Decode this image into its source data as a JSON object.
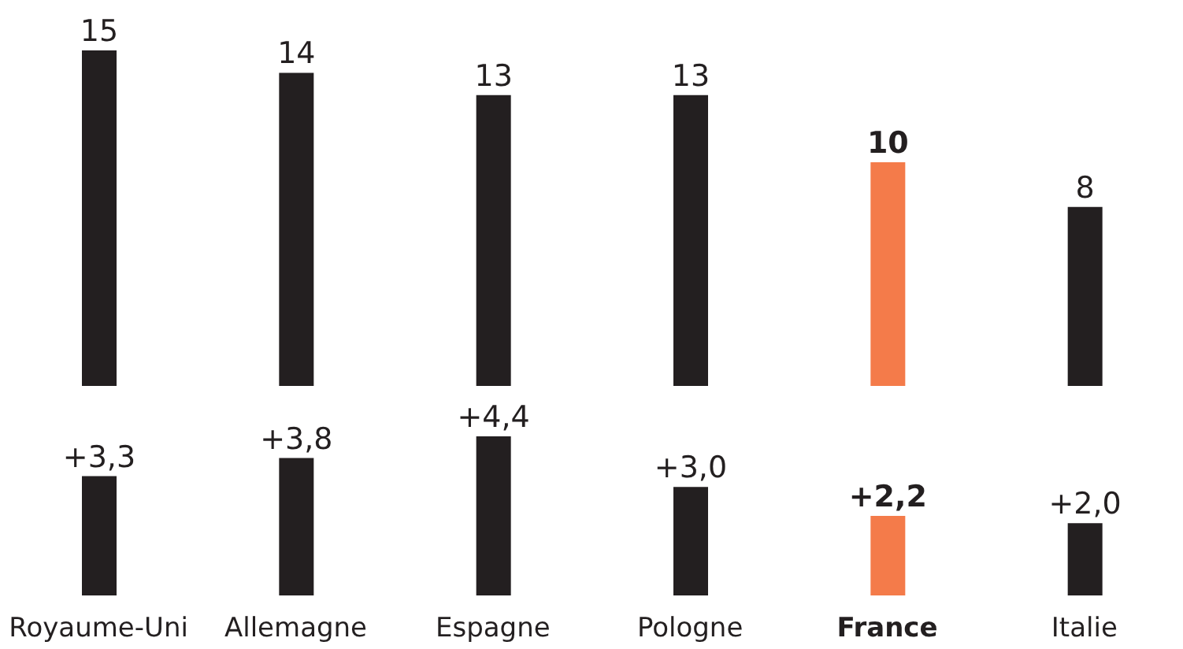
{
  "chart_data": [
    {
      "type": "bar",
      "categories": [
        null,
        null,
        null,
        null,
        null,
        null
      ],
      "values": [
        15,
        14,
        13,
        13,
        10,
        8
      ],
      "colors": [
        "#231f20",
        "#231f20",
        "#231f20",
        "#231f20",
        "#f47b4a",
        "#231f20"
      ],
      "data_labels": true,
      "tick_labels": false
    },
    {
      "type": "bar",
      "categories": [
        "Royaume-Uni",
        "Allemagne",
        "Espagne",
        "Pologne",
        "France",
        "Italie"
      ],
      "values": [
        3.3,
        3.8,
        4.4,
        3.0,
        2.2,
        2.0
      ],
      "value_labels": [
        "+3,3",
        "+3,8",
        "+4,4",
        "+3,0",
        "+2,2",
        "+2,0"
      ],
      "colors": [
        "#231f20",
        "#231f20",
        "#231f20",
        "#231f20",
        "#f47b4a",
        "#231f20"
      ]
    }
  ]
}
